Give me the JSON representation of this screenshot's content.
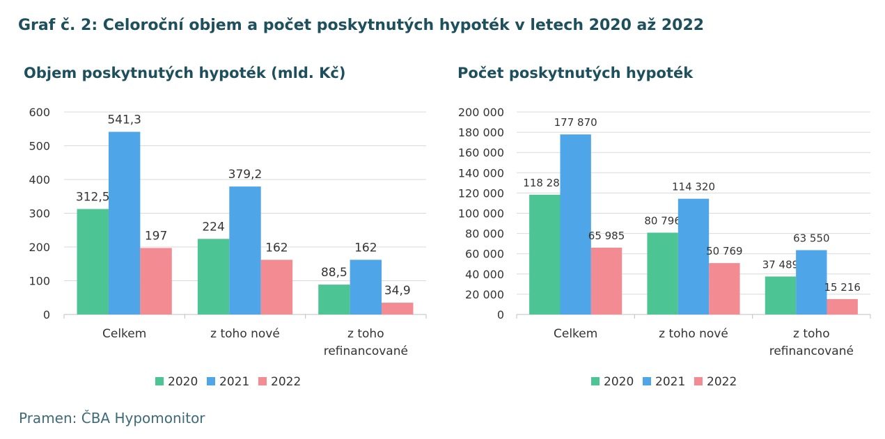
{
  "header": {
    "title": "Graf č. 2: Celoroční objem a počet poskytnutých hypoték v letech 2020 až 2022"
  },
  "footer": {
    "source": "Pramen: ČBA Hypomonitor"
  },
  "colors": {
    "2020": "#4cc493",
    "2021": "#4ea6e8",
    "2022": "#f28b92",
    "title": "#1d4f5c",
    "grid": "#d9d9d9"
  },
  "chart_data": [
    {
      "type": "bar",
      "title": "Objem poskytnutých hypoték (mld. Kč)",
      "categories": [
        [
          "Celkem"
        ],
        [
          "z toho nové"
        ],
        [
          "z toho",
          "refinancované"
        ]
      ],
      "series": [
        {
          "name": "2020",
          "values": [
            312.5,
            224,
            88.5
          ],
          "labels": [
            "312,5",
            "224",
            "88,5"
          ]
        },
        {
          "name": "2021",
          "values": [
            541.3,
            379.2,
            162
          ],
          "labels": [
            "541,3",
            "379,2",
            "162"
          ]
        },
        {
          "name": "2022",
          "values": [
            197,
            162,
            34.9
          ],
          "labels": [
            "197",
            "162",
            "34,9"
          ]
        }
      ],
      "ylim": [
        0,
        600
      ],
      "yticks": [
        0,
        100,
        200,
        300,
        400,
        500,
        600
      ],
      "ytick_labels": [
        "0",
        "100",
        "200",
        "300",
        "400",
        "500",
        "600"
      ],
      "grid": true,
      "legend": "bottom"
    },
    {
      "type": "bar",
      "title": "Počet poskytnutých hypoték",
      "categories": [
        [
          "Celkem"
        ],
        [
          "z toho nové"
        ],
        [
          "z toho",
          "refinancované"
        ]
      ],
      "series": [
        {
          "name": "2020",
          "values": [
            118285,
            80796,
            37489
          ],
          "labels": [
            "118 285",
            "80 796",
            "37 489"
          ]
        },
        {
          "name": "2021",
          "values": [
            177870,
            114320,
            63550
          ],
          "labels": [
            "177 870",
            "114 320",
            "63 550"
          ]
        },
        {
          "name": "2022",
          "values": [
            65985,
            50769,
            15216
          ],
          "labels": [
            "65 985",
            "50 769",
            "15 216"
          ]
        }
      ],
      "ylim": [
        0,
        200000
      ],
      "yticks": [
        0,
        20000,
        40000,
        60000,
        80000,
        100000,
        120000,
        140000,
        160000,
        180000,
        200000
      ],
      "ytick_labels": [
        "0",
        "20 000",
        "40 000",
        "60 000",
        "80 000",
        "100 000",
        "120 000",
        "140 000",
        "160 000",
        "180 000",
        "200 000"
      ],
      "grid": true,
      "legend": "bottom"
    }
  ]
}
